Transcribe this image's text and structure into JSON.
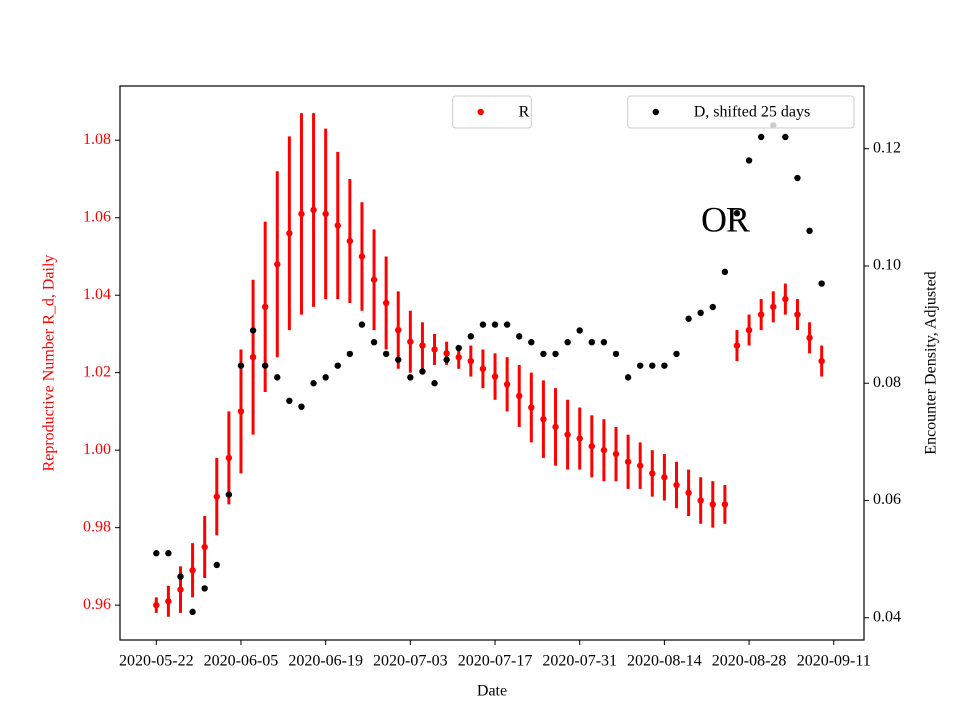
{
  "chart_data": {
    "type": "errorbar_dual",
    "xlabel": "Date",
    "ylabel": "Reproductive Number R_d, Daily",
    "y2label": "Encounter Density, Adjusted",
    "annotations": [
      "O",
      "R"
    ],
    "x": [
      "2020-05-22",
      "2020-05-24",
      "2020-05-26",
      "2020-05-28",
      "2020-05-30",
      "2020-06-01",
      "2020-06-03",
      "2020-06-05",
      "2020-06-07",
      "2020-06-09",
      "2020-06-11",
      "2020-06-13",
      "2020-06-15",
      "2020-06-17",
      "2020-06-19",
      "2020-06-21",
      "2020-06-23",
      "2020-06-25",
      "2020-06-27",
      "2020-06-29",
      "2020-07-01",
      "2020-07-03",
      "2020-07-05",
      "2020-07-07",
      "2020-07-09",
      "2020-07-11",
      "2020-07-13",
      "2020-07-15",
      "2020-07-17",
      "2020-07-19",
      "2020-07-21",
      "2020-07-23",
      "2020-07-25",
      "2020-07-27",
      "2020-07-29",
      "2020-07-31",
      "2020-08-02",
      "2020-08-04",
      "2020-08-06",
      "2020-08-08",
      "2020-08-10",
      "2020-08-12",
      "2020-08-14",
      "2020-08-16",
      "2020-08-18",
      "2020-08-20",
      "2020-08-22",
      "2020-08-24",
      "2020-08-26",
      "2020-08-28",
      "2020-08-30",
      "2020-09-01",
      "2020-09-03",
      "2020-09-05",
      "2020-09-07",
      "2020-09-09"
    ],
    "xlim": [
      "2020-05-16",
      "2020-09-16"
    ],
    "xticks": [
      "2020-05-22",
      "2020-06-05",
      "2020-06-19",
      "2020-07-03",
      "2020-07-17",
      "2020-07-31",
      "2020-08-14",
      "2020-08-28",
      "2020-09-11"
    ],
    "ylim": [
      0.951,
      1.094
    ],
    "yticks": [
      0.96,
      0.98,
      {
        "value": 1,
        "label": "1.00"
      },
      1.02,
      1.04,
      1.06,
      1.08
    ],
    "y2lim": [
      0.0362,
      0.1307
    ],
    "y2ticks": [
      0.04,
      0.06,
      0.08,
      {
        "value": 0.1,
        "label": "0.10"
      },
      0.12
    ],
    "series": [
      {
        "name": "R",
        "color": "#ff0000",
        "legend_loc": "upper center",
        "values": [
          0.96,
          0.961,
          0.964,
          0.969,
          0.975,
          0.988,
          0.998,
          1.01,
          1.024,
          1.037,
          1.048,
          1.056,
          1.061,
          1.062,
          1.061,
          1.058,
          1.054,
          1.05,
          1.044,
          1.038,
          1.031,
          1.028,
          1.027,
          1.026,
          1.025,
          1.024,
          1.023,
          1.021,
          1.019,
          1.017,
          1.014,
          1.011,
          1.008,
          1.006,
          1.004,
          1.003,
          1.001,
          1.0,
          0.999,
          0.997,
          0.996,
          0.994,
          0.993,
          0.991,
          0.989,
          0.987,
          0.986,
          0.986,
          1.027,
          1.031,
          1.035,
          1.037,
          1.039,
          1.035,
          1.029,
          1.023
        ],
        "errors": [
          0.002,
          0.004,
          0.006,
          0.007,
          0.008,
          0.01,
          0.012,
          0.016,
          0.02,
          0.022,
          0.024,
          0.025,
          0.026,
          0.025,
          0.022,
          0.019,
          0.016,
          0.014,
          0.013,
          0.012,
          0.01,
          0.008,
          0.006,
          0.004,
          0.003,
          0.003,
          0.004,
          0.005,
          0.006,
          0.007,
          0.008,
          0.009,
          0.01,
          0.01,
          0.009,
          0.008,
          0.008,
          0.008,
          0.007,
          0.007,
          0.006,
          0.006,
          0.006,
          0.006,
          0.006,
          0.006,
          0.006,
          0.005,
          0.004,
          0.004,
          0.004,
          0.004,
          0.004,
          0.004,
          0.004,
          0.004
        ]
      },
      {
        "name": "D, shifted 25 days",
        "color": "#000000",
        "axis": "y2",
        "legend_loc": "upper right",
        "values": [
          0.051,
          0.051,
          0.047,
          0.041,
          0.045,
          0.049,
          0.061,
          0.083,
          0.089,
          0.083,
          0.081,
          0.077,
          0.076,
          0.08,
          0.081,
          0.083,
          0.085,
          0.09,
          0.087,
          0.085,
          0.084,
          0.081,
          0.082,
          0.08,
          0.084,
          0.086,
          0.088,
          0.09,
          0.09,
          0.09,
          0.088,
          0.087,
          0.085,
          0.085,
          0.087,
          0.089,
          0.087,
          0.087,
          0.085,
          0.081,
          0.083,
          0.083,
          0.083,
          0.085,
          0.091,
          0.092,
          0.093,
          0.099,
          0.109,
          0.118,
          0.122,
          0.124,
          0.122,
          0.115,
          0.106,
          0.097
        ]
      }
    ]
  }
}
